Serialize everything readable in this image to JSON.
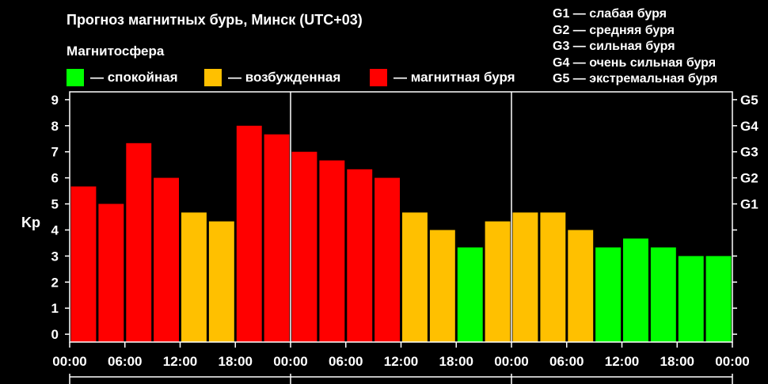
{
  "header": {
    "title": "Прогноз магнитных бурь, Минск (UTC+03)",
    "legend_heading": "Магнитосфера"
  },
  "legend": [
    {
      "label": "— спокойная",
      "color": "#00ff00"
    },
    {
      "label": "— возбужденная",
      "color": "#ffc000"
    },
    {
      "label": "— магнитная буря",
      "color": "#ff0000"
    }
  ],
  "storm_levels": [
    "G1 — слабая буря",
    "G2 — средняя буря",
    "G3 — сильная буря",
    "G4 — очень сильная буря",
    "G5 — экстремальная буря"
  ],
  "chart_data": {
    "type": "bar",
    "ylabel": "Kp",
    "ylim": [
      -0.3,
      9.3
    ],
    "yticks": [
      0,
      1,
      2,
      3,
      4,
      5,
      6,
      7,
      8,
      9
    ],
    "right_ticks": [
      {
        "label": "G1",
        "value": 5
      },
      {
        "label": "G2",
        "value": 6
      },
      {
        "label": "G3",
        "value": 7
      },
      {
        "label": "G4",
        "value": 8
      },
      {
        "label": "G5",
        "value": 9
      }
    ],
    "x_tick_labels": [
      "00:00",
      "06:00",
      "12:00",
      "18:00",
      "00:00",
      "06:00",
      "12:00",
      "18:00",
      "00:00",
      "06:00",
      "12:00",
      "18:00",
      "00:00"
    ],
    "day_separators_after_bar": [
      8,
      16
    ],
    "colors": {
      "quiet": "#00ff00",
      "active": "#ffc000",
      "storm": "#ff0000"
    },
    "values": [
      5.67,
      5.0,
      7.33,
      6.0,
      4.67,
      4.33,
      8.0,
      7.67,
      7.0,
      6.67,
      6.33,
      6.0,
      4.67,
      4.0,
      3.33,
      4.33,
      4.67,
      4.67,
      4.0,
      3.33,
      3.67,
      3.33,
      3.0,
      3.0
    ],
    "levels": [
      "storm",
      "storm",
      "storm",
      "storm",
      "active",
      "active",
      "storm",
      "storm",
      "storm",
      "storm",
      "storm",
      "storm",
      "active",
      "active",
      "quiet",
      "active",
      "active",
      "active",
      "active",
      "quiet",
      "quiet",
      "quiet",
      "quiet",
      "quiet"
    ],
    "grid": false
  }
}
